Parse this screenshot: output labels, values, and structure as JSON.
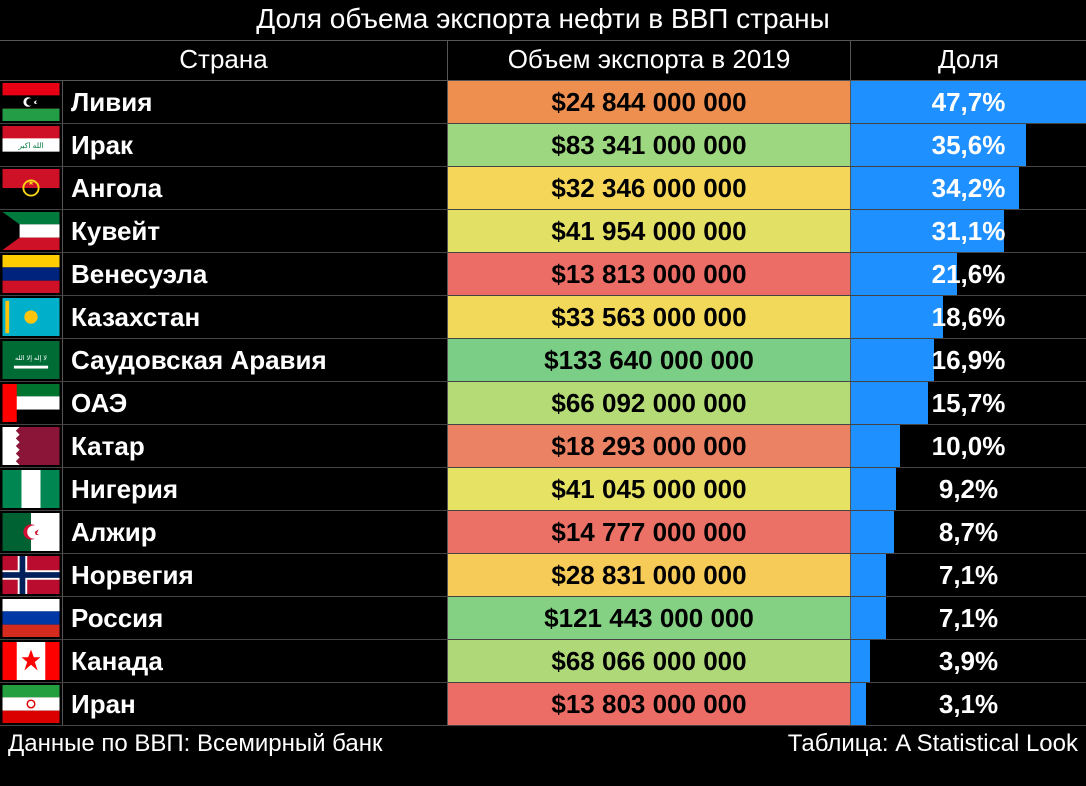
{
  "title": "Доля объема экспорта нефти в ВВП страны",
  "headers": {
    "country": "Страна",
    "volume": "Объем экспорта в 2019",
    "share": "Доля"
  },
  "bar_color": "#1e90ff",
  "max_share_percent": 47.7,
  "volume_color_scale": {
    "low": "#eb6d66",
    "mid": "#f6d658",
    "high": "#7bce85",
    "highlight": "#ee8f4f"
  },
  "rows": [
    {
      "country": "Ливия",
      "volume": "$24 844 000 000",
      "share": "47,7%",
      "share_val": 47.7,
      "vol_bg": "#ee8f4f",
      "flag": "<rect width='60' height='40' fill='#e70013'/><rect y='13' width='60' height='14' fill='#000'/><rect y='27' width='60' height='13' fill='#239e46'/><circle cx='27' cy='20' r='5' fill='#fff'/><circle cx='29' cy='20' r='4' fill='#000'/><polygon points='33,20 36,18 35,21 37,22 34,22' fill='#fff'/>"
    },
    {
      "country": "Ирак",
      "volume": "$83 341 000 000",
      "share": "35,6%",
      "share_val": 35.6,
      "vol_bg": "#9dd77f",
      "flag": "<rect width='60' height='40' fill='#fff'/><rect width='60' height='13' fill='#ce1126'/><rect y='27' width='60' height='13' fill='#000'/><text x='30' y='23' font-size='8' fill='#007a3d' text-anchor='middle'>الله اكبر</text>"
    },
    {
      "country": "Ангола",
      "volume": "$32 346 000 000",
      "share": "34,2%",
      "share_val": 34.2,
      "vol_bg": "#f6d658",
      "flag": "<rect width='60' height='20' fill='#ce1126'/><rect y='20' width='60' height='20' fill='#000'/><circle cx='30' cy='20' r='8' fill='none' stroke='#f9d616' stroke-width='2'/><polygon points='30,12 32,17 27,14 33,14 28,17' fill='#f9d616'/>"
    },
    {
      "country": "Кувейт",
      "volume": "$41 954 000 000",
      "share": "31,1%",
      "share_val": 31.1,
      "vol_bg": "#e3e165",
      "flag": "<rect width='60' height='13' fill='#007a3d'/><rect y='13' width='60' height='14' fill='#fff'/><rect y='27' width='60' height='13' fill='#ce1126'/><polygon points='0,0 18,13 18,27 0,40' fill='#000'/>"
    },
    {
      "country": "Венесуэла",
      "volume": "$13 813 000 000",
      "share": "21,6%",
      "share_val": 21.6,
      "vol_bg": "#eb6d66",
      "flag": "<rect width='60' height='13' fill='#ffcc00'/><rect y='13' width='60' height='14' fill='#00247d'/><rect y='27' width='60' height='13' fill='#ce1126'/>"
    },
    {
      "country": "Казахстан",
      "volume": "$33 563 000 000",
      "share": "18,6%",
      "share_val": 18.6,
      "vol_bg": "#f3d95a",
      "flag": "<rect width='60' height='40' fill='#00afca'/><circle cx='30' cy='20' r='7' fill='#fec50c'/><rect x='3' y='3' width='4' height='34' fill='#fec50c'/>"
    },
    {
      "country": "Саудовская Аравия",
      "volume": "$133 640 000 000",
      "share": "16,9%",
      "share_val": 16.9,
      "vol_bg": "#7bce85",
      "flag": "<rect width='60' height='40' fill='#006c35'/><rect x='12' y='26' width='36' height='3' fill='#fff'/><text x='30' y='20' font-size='7' fill='#fff' text-anchor='middle'>لا إله إلا الله</text>"
    },
    {
      "country": "ОАЭ",
      "volume": "$66 092 000 000",
      "share": "15,7%",
      "share_val": 15.7,
      "vol_bg": "#b4db76",
      "flag": "<rect width='60' height='13' fill='#00732f'/><rect y='13' width='60' height='14' fill='#fff'/><rect y='27' width='60' height='13' fill='#000'/><rect width='15' height='40' fill='#ff0000'/>"
    },
    {
      "country": "Катар",
      "volume": "$18 293 000 000",
      "share": "10,0%",
      "share_val": 10.0,
      "vol_bg": "#ec8264",
      "flag": "<rect width='60' height='40' fill='#8a1538'/><polygon points='0,0 18,0 14,4 18,8 14,12 18,16 14,20 18,24 14,28 18,32 14,36 18,40 0,40' fill='#fff'/>"
    },
    {
      "country": "Нигерия",
      "volume": "$41 045 000 000",
      "share": "9,2%",
      "share_val": 9.2,
      "vol_bg": "#e5e264",
      "flag": "<rect width='20' height='40' fill='#008751'/><rect x='20' width='20' height='40' fill='#fff'/><rect x='40' width='20' height='40' fill='#008751'/>"
    },
    {
      "country": "Алжир",
      "volume": "$14 777 000 000",
      "share": "8,7%",
      "share_val": 8.7,
      "vol_bg": "#eb7066",
      "flag": "<rect width='30' height='40' fill='#006233'/><rect x='30' width='30' height='40' fill='#fff'/><circle cx='30' cy='20' r='8' fill='#d21034'/><circle cx='33' cy='20' r='7' fill='#fff'/><circle cx='30' cy='20' r='8' fill='none'/><polygon points='34,20 38,17 36,22 39,23 35,23' fill='#d21034'/>"
    },
    {
      "country": "Норвегия",
      "volume": "$28 831 000 000",
      "share": "7,1%",
      "share_val": 7.1,
      "vol_bg": "#f7cb57",
      "flag": "<rect width='60' height='40' fill='#ba0c2f'/><rect x='16' width='10' height='40' fill='#fff'/><rect y='15' width='60' height='10' fill='#fff'/><rect x='18' width='6' height='40' fill='#00205b'/><rect y='17' width='60' height='6' fill='#00205b'/>"
    },
    {
      "country": "Россия",
      "volume": "$121 443 000 000",
      "share": "7,1%",
      "share_val": 7.1,
      "vol_bg": "#84d183",
      "flag": "<rect width='60' height='13' fill='#fff'/><rect y='13' width='60' height='14' fill='#0039a6'/><rect y='27' width='60' height='13' fill='#d52b1e'/>"
    },
    {
      "country": "Канада",
      "volume": "$68 066 000 000",
      "share": "3,9%",
      "share_val": 3.9,
      "vol_bg": "#afd978",
      "flag": "<rect width='60' height='40' fill='#fff'/><rect width='15' height='40' fill='#ff0000'/><rect x='45' width='15' height='40' fill='#ff0000'/><polygon points='30,8 33,16 40,16 34,21 37,30 30,24 23,30 26,21 20,16 27,16' fill='#ff0000'/>"
    },
    {
      "country": "Иран",
      "volume": "$13 803 000 000",
      "share": "3,1%",
      "share_val": 3.1,
      "vol_bg": "#eb6d66",
      "flag": "<rect width='60' height='13' fill='#239f40'/><rect y='13' width='60' height='14' fill='#fff'/><rect y='27' width='60' height='13' fill='#da0000'/><circle cx='30' cy='20' r='4' fill='none' stroke='#da0000' stroke-width='1.5'/>"
    }
  ],
  "footer": {
    "left": "Данные по ВВП: Всемирный банк",
    "right": "Таблица: A Statistical Look"
  }
}
